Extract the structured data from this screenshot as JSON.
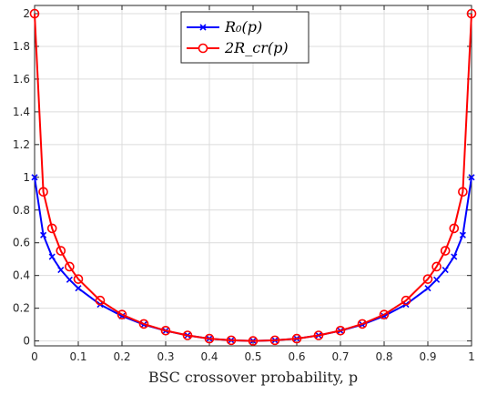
{
  "chart_data": {
    "type": "line",
    "title": "",
    "xlabel": "BSC crossover probability, p",
    "ylabel": "",
    "xlim": [
      0,
      1
    ],
    "ylim": [
      -0.03,
      2.05
    ],
    "grid": true,
    "legend_position": "top-center",
    "x_ticks": [
      0,
      0.1,
      0.2,
      0.3,
      0.4,
      0.5,
      0.6,
      0.7,
      0.8,
      0.9,
      1
    ],
    "x_tick_labels": [
      "0",
      "0.1",
      "0.2",
      "0.3",
      "0.4",
      "0.5",
      "0.6",
      "0.7",
      "0.8",
      "0.9",
      "1"
    ],
    "y_ticks": [
      0,
      0.2,
      0.4,
      0.6,
      0.8,
      1,
      1.2,
      1.4,
      1.6,
      1.8,
      2
    ],
    "y_tick_labels": [
      "0",
      "0.2",
      "0.4",
      "0.6",
      "0.8",
      "1",
      "1.2",
      "1.4",
      "1.6",
      "1.8",
      "2"
    ],
    "series": [
      {
        "name": "R₀(p)",
        "color": "#0000ff",
        "marker": "x",
        "x": [
          0,
          0.02,
          0.04,
          0.06,
          0.08,
          0.1,
          0.15,
          0.2,
          0.25,
          0.3,
          0.35,
          0.4,
          0.45,
          0.5,
          0.55,
          0.6,
          0.65,
          0.7,
          0.75,
          0.8,
          0.85,
          0.9,
          0.92,
          0.94,
          0.96,
          0.98,
          1
        ],
        "values": [
          1.0,
          0.647,
          0.515,
          0.434,
          0.374,
          0.322,
          0.223,
          0.152,
          0.1,
          0.062,
          0.034,
          0.014,
          0.004,
          0.0,
          0.004,
          0.014,
          0.034,
          0.062,
          0.1,
          0.152,
          0.223,
          0.322,
          0.374,
          0.434,
          0.515,
          0.647,
          1.0
        ]
      },
      {
        "name": "2R_cr(p)",
        "color": "#ff0000",
        "marker": "o",
        "x": [
          0,
          0.02,
          0.04,
          0.06,
          0.08,
          0.1,
          0.15,
          0.2,
          0.25,
          0.3,
          0.35,
          0.4,
          0.45,
          0.5,
          0.55,
          0.6,
          0.65,
          0.7,
          0.75,
          0.8,
          0.85,
          0.9,
          0.92,
          0.94,
          0.96,
          0.98,
          1
        ],
        "values": [
          2.0,
          0.911,
          0.688,
          0.551,
          0.454,
          0.378,
          0.247,
          0.161,
          0.104,
          0.063,
          0.034,
          0.014,
          0.004,
          0.0,
          0.004,
          0.014,
          0.034,
          0.063,
          0.104,
          0.161,
          0.247,
          0.378,
          0.454,
          0.551,
          0.688,
          0.911,
          2.0
        ]
      }
    ]
  }
}
